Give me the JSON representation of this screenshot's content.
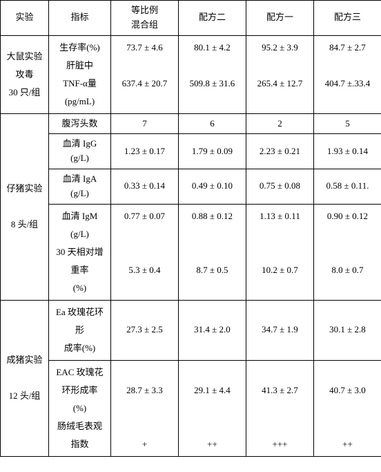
{
  "header": {
    "c1": "实验",
    "c2": "指标",
    "c3_line1": "等比例",
    "c3_line2": "混合组",
    "c4": "配方二",
    "c5": "配方一",
    "c6": "配方三"
  },
  "rat": {
    "label_l1": "大鼠实验",
    "label_l2": "攻毒",
    "label_l3": "30 只/组",
    "ind_l1": "生存率(%)",
    "ind_l2": "肝脏中",
    "ind_l3": "TNF-α量",
    "ind_l4": "(pg/mL)",
    "survival": {
      "mix": "73.7 ± 4.6",
      "f2": "80.1 ± 4.2",
      "f1": "95.2 ± 3.9",
      "f3": "84.7 ± 2.7"
    },
    "tnf": {
      "mix": "637.4 ± 20.7",
      "f2": "509.8 ± 31.6",
      "f1": "265.4 ± 12.7",
      "f3": "404.7 ±.33.4"
    }
  },
  "piglet": {
    "label_l1": "仔猪实验",
    "label_l2": "8 头/组",
    "diarrhea_label": "腹泻头数",
    "diarrhea": {
      "mix": "7",
      "f2": "6",
      "f1": "2",
      "f3": "5"
    },
    "igg_l1": "血清 IgG",
    "igg_l2": "(g/L)",
    "igg": {
      "mix": "1.23 ± 0.17",
      "f2": "1.79 ± 0.09",
      "f1": "2.23 ± 0.21",
      "f3": "1.93 ± 0.14"
    },
    "iga_l1": "血清 IgA",
    "iga_l2": "(g/L)",
    "iga": {
      "mix": "0.33 ± 0.14",
      "f2": "0.49 ± 0.10",
      "f1": "0.75 ± 0.08",
      "f3": "0.58 ± 0.11."
    },
    "igm_l1": "血清 IgM",
    "igm_l2": "(g/L)",
    "igm_l3": "30 天相对增",
    "igm_l4": "重率",
    "igm_l5": "(%)",
    "igm": {
      "mix": "0.77 ± 0.07",
      "f2": "0.88 ± 0.12",
      "f1": "1.13 ± 0.11",
      "f3": "0.90 ± 0.12"
    },
    "gain": {
      "mix": "5.3 ± 0.4",
      "f2": "8.7 ± 0.5",
      "f1": "10.2 ± 0.7",
      "f3": "8.0 ± 0.7"
    }
  },
  "pig": {
    "label_l1": "成猪实验",
    "label_l2": "12 头/组",
    "ea_l1": "Ea 玫瑰花环",
    "ea_l2": "形",
    "ea_l3": "成率(%)",
    "ea": {
      "mix": "27.3 ± 2.5",
      "f2": "31.4 ± 2.0",
      "f1": "34.7 ± 1.9",
      "f3": "30.1 ± 2.8"
    },
    "eac_l1": "EAC 玫瑰花",
    "eac_l2": "环形成率",
    "eac_l3": "(%)",
    "eac_l4": "肠绒毛表观",
    "eac_l5": "指数",
    "eac": {
      "mix": "28.7 ± 3.3",
      "f2": "29.1 ± 4.4",
      "f1": "41.3 ± 2.7",
      "f3": "40.7 ± 3.0"
    },
    "villi": {
      "mix": "+",
      "f2": "++",
      "f1": "+++",
      "f3": "++"
    }
  }
}
